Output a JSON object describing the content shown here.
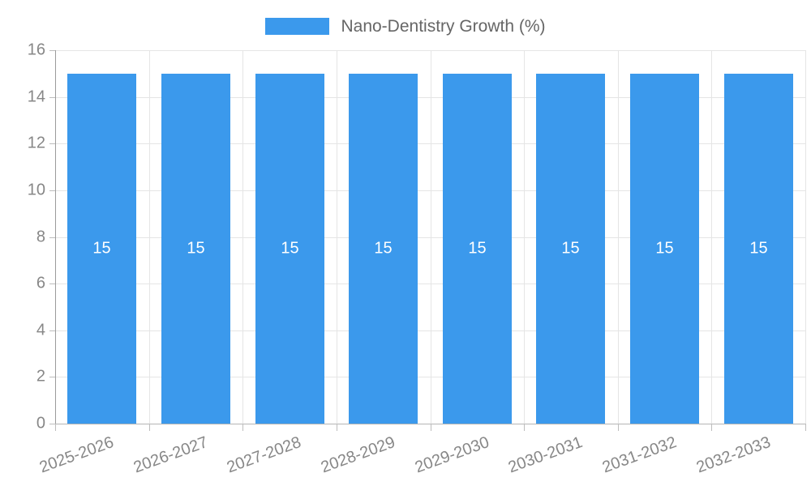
{
  "chart_data": {
    "type": "bar",
    "title": "",
    "categories": [
      "2025-2026",
      "2026-2027",
      "2027-2028",
      "2028-2029",
      "2029-2030",
      "2030-2031",
      "2031-2032",
      "2032-2033"
    ],
    "series": [
      {
        "name": "Nano-Dentistry Growth (%)",
        "values": [
          15,
          15,
          15,
          15,
          15,
          15,
          15,
          15
        ]
      }
    ],
    "xlabel": "",
    "ylabel": "",
    "ylim": [
      0,
      16
    ],
    "ytick_step": 2,
    "yticks": [
      0,
      2,
      4,
      6,
      8,
      10,
      12,
      14,
      16
    ],
    "grid": "on",
    "legend_position": "top",
    "data_labels": [
      "15",
      "15",
      "15",
      "15",
      "15",
      "15",
      "15",
      "15"
    ],
    "colors": {
      "bar": "#3b99ec",
      "data_label_text": "#ffffff",
      "legend_text": "#666666",
      "tick_label_text": "#878787",
      "gridline": "#e5e5e5",
      "y_axis_line": "#9b9b9b",
      "x_axis_line": "#b5b5b5",
      "tick_mark": "#bdbdbd",
      "background": "#ffffff"
    }
  }
}
